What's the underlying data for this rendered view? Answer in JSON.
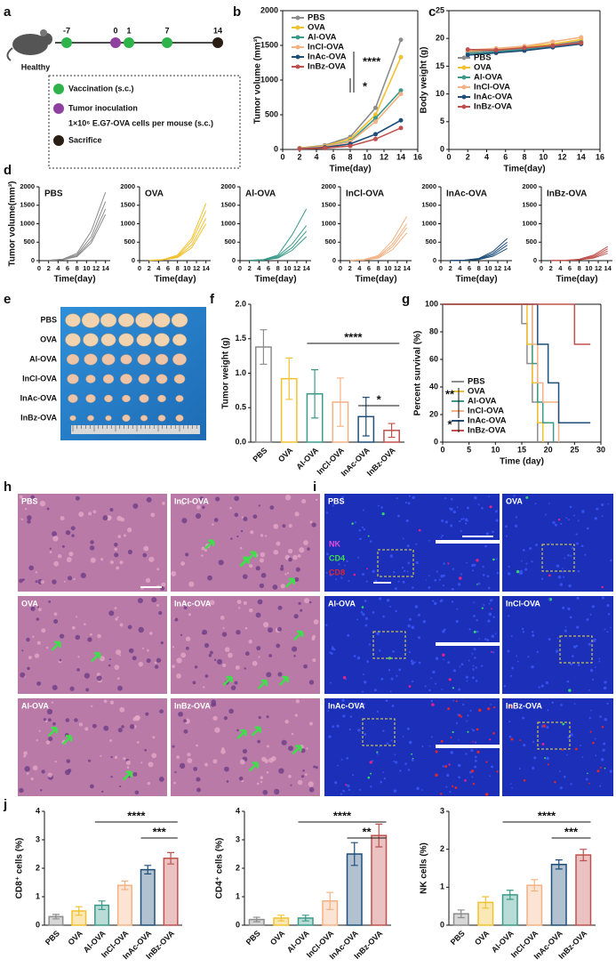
{
  "panel_labels": [
    "a",
    "b",
    "c",
    "d",
    "e",
    "f",
    "g",
    "h",
    "i",
    "j"
  ],
  "timeline": {
    "days": [
      "-7",
      "0",
      "1",
      "7",
      "14"
    ],
    "start_label": "Healthy",
    "legend": [
      "Vaccination (s.c.)",
      "Tumor inoculation",
      "1×10⁶ E.G7-OVA cells per mouse (s.c.)",
      "Sacrifice"
    ]
  },
  "tumor_photo": {
    "labels": [
      "PBS",
      "OVA",
      "Al-OVA",
      "InCl-OVA",
      "InAc-OVA",
      "InBz-OVA"
    ]
  },
  "histology": {
    "labels": [
      "PBS",
      "InCl-OVA",
      "OVA",
      "InAc-OVA",
      "Al-OVA",
      "InBz-OVA"
    ]
  },
  "fluorescence": {
    "labels": [
      "PBS",
      "OVA",
      "Al-OVA",
      "InCl-OVA",
      "InAc-OVA",
      "InBz-OVA"
    ],
    "channels": [
      "NK",
      "CD4",
      "CD8"
    ]
  },
  "chart_data": [
    {
      "type": "line",
      "x_label": "Time(day)",
      "y_label": "Tumor volume (mm³)",
      "x": [
        2,
        5,
        8,
        11,
        14
      ],
      "xlim": [
        0,
        16
      ],
      "xticks": [
        0,
        2,
        4,
        6,
        8,
        10,
        12,
        14,
        16
      ],
      "ylim": [
        0,
        2000
      ],
      "yticks": [
        0,
        500,
        1000,
        1500,
        2000
      ],
      "legend": "upper left",
      "series": [
        {
          "name": "PBS",
          "color": "#8c8c8c",
          "values": [
            20,
            60,
            180,
            600,
            1580
          ]
        },
        {
          "name": "OVA",
          "color": "#f2c12e",
          "values": [
            20,
            50,
            150,
            500,
            1330
          ]
        },
        {
          "name": "Al-OVA",
          "color": "#3a9a8a",
          "values": [
            15,
            40,
            120,
            450,
            850
          ]
        },
        {
          "name": "InCl-OVA",
          "color": "#f4b183",
          "values": [
            15,
            40,
            110,
            400,
            800
          ]
        },
        {
          "name": "InAc-OVA",
          "color": "#1f4e79",
          "values": [
            10,
            30,
            80,
            220,
            420
          ]
        },
        {
          "name": "InBz-OVA",
          "color": "#c0504d",
          "values": [
            10,
            20,
            50,
            150,
            310
          ]
        }
      ],
      "annotations": [
        "****",
        "*"
      ]
    },
    {
      "type": "line",
      "x_label": "Time(day)",
      "y_label": "Body weight (g)",
      "x": [
        2,
        5,
        8,
        11,
        14
      ],
      "xlim": [
        0,
        16
      ],
      "xticks": [
        0,
        2,
        4,
        6,
        8,
        10,
        12,
        14,
        16
      ],
      "ylim": [
        0,
        25
      ],
      "yticks": [
        0,
        5,
        10,
        15,
        20,
        25
      ],
      "legend": "center left",
      "series": [
        {
          "name": "PBS",
          "color": "#8c8c8c",
          "values": [
            17.5,
            17.8,
            18.2,
            18.8,
            19.5
          ]
        },
        {
          "name": "OVA",
          "color": "#f2c12e",
          "values": [
            17.8,
            18.0,
            18.5,
            19.0,
            19.8
          ]
        },
        {
          "name": "Al-OVA",
          "color": "#3a9a8a",
          "values": [
            17.2,
            17.6,
            18.0,
            18.6,
            19.3
          ]
        },
        {
          "name": "InCl-OVA",
          "color": "#f4b183",
          "values": [
            17.9,
            18.2,
            18.6,
            19.4,
            20.2
          ]
        },
        {
          "name": "InAc-OVA",
          "color": "#1f4e79",
          "values": [
            17.0,
            17.4,
            17.8,
            18.4,
            19.0
          ]
        },
        {
          "name": "InBz-OVA",
          "color": "#c0504d",
          "values": [
            18.0,
            17.9,
            18.3,
            18.7,
            19.2
          ]
        }
      ]
    },
    {
      "type": "line",
      "title": "PBS",
      "x_label": "Time(day)",
      "y_label": "Tumor volume(mm³)",
      "x": [
        2,
        5,
        8,
        11,
        14
      ],
      "xlim": [
        0,
        15
      ],
      "xticks": [
        0,
        2,
        4,
        6,
        8,
        10,
        12,
        14
      ],
      "ylim": [
        0,
        2000
      ],
      "yticks": [
        0,
        500,
        1000,
        1500,
        2000
      ],
      "series": [
        {
          "color": "#8c8c8c",
          "values": [
            10,
            40,
            200,
            800,
            1850
          ]
        },
        {
          "color": "#8c8c8c",
          "values": [
            10,
            35,
            160,
            650,
            1600
          ]
        },
        {
          "color": "#8c8c8c",
          "values": [
            8,
            30,
            130,
            550,
            1400
          ]
        },
        {
          "color": "#8c8c8c",
          "values": [
            8,
            25,
            110,
            480,
            1250
          ]
        }
      ]
    },
    {
      "type": "line",
      "title": "OVA",
      "x_label": "Time(day)",
      "x": [
        2,
        5,
        8,
        11,
        14
      ],
      "xlim": [
        0,
        15
      ],
      "xticks": [
        0,
        2,
        4,
        6,
        8,
        10,
        12,
        14
      ],
      "ylim": [
        0,
        2000
      ],
      "yticks": [
        0,
        500,
        1000,
        1500,
        2000
      ],
      "series": [
        {
          "color": "#f2c12e",
          "values": [
            10,
            30,
            150,
            600,
            1550
          ]
        },
        {
          "color": "#f2c12e",
          "values": [
            8,
            25,
            120,
            520,
            1350
          ]
        },
        {
          "color": "#f2c12e",
          "values": [
            8,
            20,
            100,
            420,
            1150
          ]
        },
        {
          "color": "#f2c12e",
          "values": [
            5,
            20,
            80,
            350,
            1000
          ]
        }
      ]
    },
    {
      "type": "line",
      "title": "Al-OVA",
      "x_label": "Time(day)",
      "x": [
        2,
        5,
        8,
        11,
        14
      ],
      "xlim": [
        0,
        15
      ],
      "xticks": [
        0,
        2,
        4,
        6,
        8,
        10,
        12,
        14
      ],
      "ylim": [
        0,
        2000
      ],
      "yticks": [
        0,
        500,
        1000,
        1500,
        2000
      ],
      "series": [
        {
          "color": "#3a9a8a",
          "values": [
            8,
            30,
            150,
            700,
            1400
          ]
        },
        {
          "color": "#3a9a8a",
          "values": [
            8,
            25,
            120,
            450,
            950
          ]
        },
        {
          "color": "#3a9a8a",
          "values": [
            5,
            20,
            90,
            350,
            800
          ]
        },
        {
          "color": "#3a9a8a",
          "values": [
            5,
            15,
            70,
            280,
            650
          ]
        }
      ]
    },
    {
      "type": "line",
      "title": "InCl-OVA",
      "x_label": "Time(day)",
      "x": [
        2,
        5,
        8,
        11,
        14
      ],
      "xlim": [
        0,
        15
      ],
      "xticks": [
        0,
        2,
        4,
        6,
        8,
        10,
        12,
        14
      ],
      "ylim": [
        0,
        2000
      ],
      "yticks": [
        0,
        500,
        1000,
        1500,
        2000
      ],
      "series": [
        {
          "color": "#f4b183",
          "values": [
            8,
            30,
            140,
            550,
            1200
          ]
        },
        {
          "color": "#f4b183",
          "values": [
            8,
            25,
            110,
            450,
            1000
          ]
        },
        {
          "color": "#f4b183",
          "values": [
            5,
            20,
            90,
            380,
            900
          ]
        },
        {
          "color": "#f4b183",
          "values": [
            5,
            15,
            70,
            300,
            750
          ]
        }
      ]
    },
    {
      "type": "line",
      "title": "InAc-OVA",
      "x_label": "Time(day)",
      "x": [
        2,
        5,
        8,
        11,
        14
      ],
      "xlim": [
        0,
        15
      ],
      "xticks": [
        0,
        2,
        4,
        6,
        8,
        10,
        12,
        14
      ],
      "ylim": [
        0,
        2000
      ],
      "yticks": [
        0,
        500,
        1000,
        1500,
        2000
      ],
      "series": [
        {
          "color": "#1f4e79",
          "values": [
            5,
            15,
            60,
            250,
            600
          ]
        },
        {
          "color": "#1f4e79",
          "values": [
            5,
            12,
            50,
            200,
            500
          ]
        },
        {
          "color": "#1f4e79",
          "values": [
            4,
            10,
            40,
            160,
            420
          ]
        },
        {
          "color": "#1f4e79",
          "values": [
            3,
            8,
            30,
            120,
            330
          ]
        }
      ]
    },
    {
      "type": "line",
      "title": "InBz-OVA",
      "x_label": "Time(day)",
      "x": [
        2,
        5,
        8,
        11,
        14
      ],
      "xlim": [
        0,
        15
      ],
      "xticks": [
        0,
        2,
        4,
        6,
        8,
        10,
        12,
        14
      ],
      "ylim": [
        0,
        2000
      ],
      "yticks": [
        0,
        500,
        1000,
        1500,
        2000
      ],
      "series": [
        {
          "color": "#c0504d",
          "values": [
            5,
            10,
            40,
            150,
            380
          ]
        },
        {
          "color": "#c0504d",
          "values": [
            4,
            8,
            30,
            120,
            320
          ]
        },
        {
          "color": "#c0504d",
          "values": [
            3,
            6,
            25,
            90,
            260
          ]
        },
        {
          "color": "#c0504d",
          "values": [
            2,
            5,
            20,
            70,
            200
          ]
        }
      ]
    },
    {
      "type": "bar",
      "y_label": "Tumor weight (g)",
      "categories": [
        "PBS",
        "OVA",
        "Al-OVA",
        "InCl-OVA",
        "InAc-OVA",
        "InBz-OVA"
      ],
      "values": [
        1.38,
        0.92,
        0.7,
        0.58,
        0.37,
        0.17
      ],
      "errors": [
        0.25,
        0.3,
        0.35,
        0.35,
        0.28,
        0.1
      ],
      "colors": [
        "#8c8c8c",
        "#f2c12e",
        "#3a9a8a",
        "#f4b183",
        "#1f4e79",
        "#c0504d"
      ],
      "ylim": [
        0,
        2
      ],
      "yticks": [
        {
          "value": 0,
          "label": "0.0"
        },
        {
          "value": 0.5,
          "label": "0.5"
        },
        {
          "value": 1,
          "label": "1.0"
        },
        {
          "value": 1.5,
          "label": "1.5"
        },
        {
          "value": 2,
          "label": "2.0"
        }
      ],
      "annotations": [
        "****",
        "*"
      ]
    },
    {
      "type": "step",
      "x_label": "Time (day)",
      "y_label": "Percent survival (%)",
      "xlim": [
        0,
        30
      ],
      "xticks": [
        0,
        5,
        10,
        15,
        20,
        25,
        30
      ],
      "ylim": [
        0,
        100
      ],
      "yticks": [
        0,
        20,
        40,
        60,
        80,
        100
      ],
      "legend": "lower left",
      "series": [
        {
          "name": "PBS",
          "color": "#8c8c8c",
          "x": [
            0,
            15,
            16,
            17,
            18
          ],
          "values": [
            100,
            86,
            57,
            29,
            0
          ]
        },
        {
          "name": "OVA",
          "color": "#f2c12e",
          "x": [
            0,
            16,
            17,
            18,
            19
          ],
          "values": [
            100,
            71,
            43,
            14,
            0
          ]
        },
        {
          "name": "Al-OVA",
          "color": "#3a9a8a",
          "x": [
            0,
            17,
            18,
            19,
            21
          ],
          "values": [
            100,
            57,
            29,
            14,
            0
          ]
        },
        {
          "name": "InCl-OVA",
          "color": "#f4b183",
          "x": [
            0,
            17,
            18,
            19,
            22
          ],
          "values": [
            100,
            71,
            43,
            29,
            0
          ]
        },
        {
          "name": "InAc-OVA",
          "color": "#1f4e79",
          "x": [
            0,
            18,
            20,
            22,
            28
          ],
          "values": [
            100,
            71,
            43,
            14,
            14
          ]
        },
        {
          "name": "InBz-OVA",
          "color": "#c0504d",
          "x": [
            0,
            25,
            28
          ],
          "values": [
            100,
            71,
            71
          ]
        }
      ],
      "annotations": [
        "**",
        "*"
      ]
    },
    {
      "type": "bar",
      "y_label": "CD8⁺ cells (%)",
      "categories": [
        "PBS",
        "OVA",
        "Al-OVA",
        "InCl-OVA",
        "InAc-OVA",
        "InBz-OVA"
      ],
      "values": [
        0.3,
        0.5,
        0.7,
        1.4,
        1.95,
        2.35
      ],
      "errors": [
        0.08,
        0.15,
        0.15,
        0.15,
        0.15,
        0.2
      ],
      "colors": [
        "#8c8c8c",
        "#f2c12e",
        "#3a9a8a",
        "#f4b183",
        "#1f4e79",
        "#c0504d"
      ],
      "ylim": [
        0,
        4
      ],
      "yticks": [
        0,
        1,
        2,
        3,
        4
      ],
      "annotations": [
        "****",
        "***"
      ]
    },
    {
      "type": "bar",
      "y_label": "CD4⁺ cells (%)",
      "categories": [
        "PBS",
        "OVA",
        "Al-OVA",
        "InCl-OVA",
        "InAc-OVA",
        "InBz-OVA"
      ],
      "values": [
        0.2,
        0.25,
        0.25,
        0.85,
        2.5,
        3.15
      ],
      "errors": [
        0.08,
        0.1,
        0.1,
        0.3,
        0.4,
        0.4
      ],
      "colors": [
        "#8c8c8c",
        "#f2c12e",
        "#3a9a8a",
        "#f4b183",
        "#1f4e79",
        "#c0504d"
      ],
      "ylim": [
        0,
        4
      ],
      "yticks": [
        0,
        1,
        2,
        3,
        4
      ],
      "annotations": [
        "****",
        "**"
      ]
    },
    {
      "type": "bar",
      "y_label": "NK cells (%)",
      "categories": [
        "PBS",
        "OVA",
        "Al-OVA",
        "InCl-OVA",
        "InAc-OVA",
        "InBz-OVA"
      ],
      "values": [
        0.3,
        0.6,
        0.8,
        1.05,
        1.6,
        1.85
      ],
      "errors": [
        0.1,
        0.15,
        0.12,
        0.15,
        0.12,
        0.15
      ],
      "colors": [
        "#8c8c8c",
        "#f2c12e",
        "#3a9a8a",
        "#f4b183",
        "#1f4e79",
        "#c0504d"
      ],
      "ylim": [
        0,
        3
      ],
      "yticks": [
        0,
        1,
        2,
        3
      ],
      "annotations": [
        "****",
        "***"
      ]
    }
  ]
}
